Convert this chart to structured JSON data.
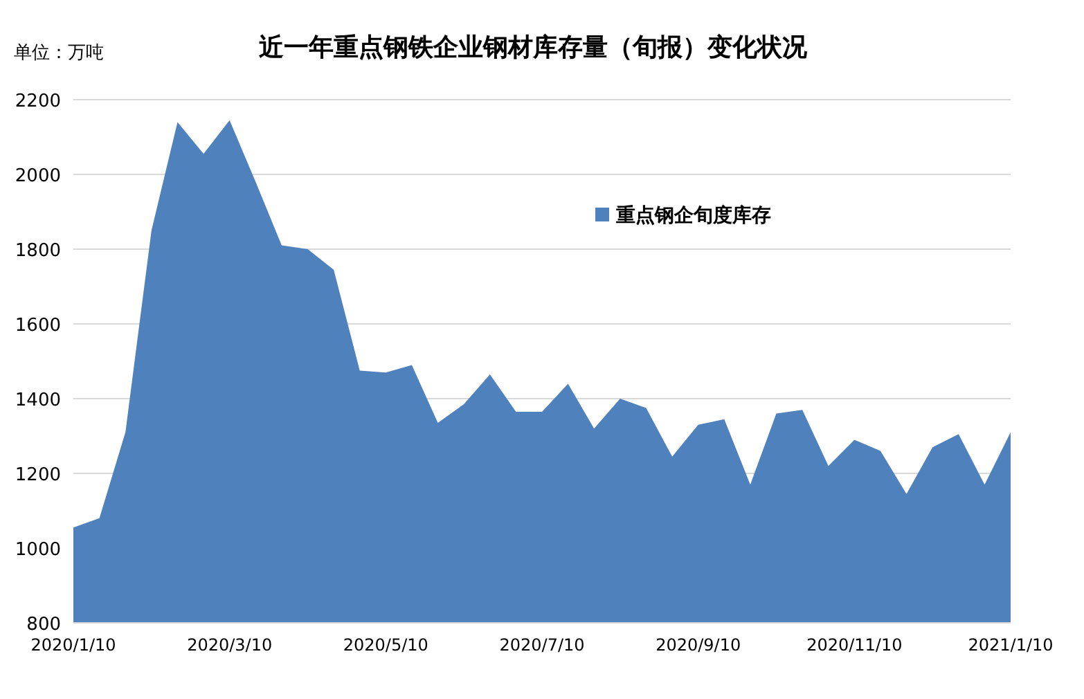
{
  "chart_data": {
    "type": "area",
    "title": "近一年重点钢铁企业钢材库存量（旬报）变化状况",
    "ylabel": "单位：万吨",
    "categories": [
      "2020/1/10",
      null,
      null,
      null,
      null,
      null,
      "2020/3/10",
      null,
      null,
      null,
      null,
      null,
      "2020/5/10",
      null,
      null,
      null,
      null,
      null,
      "2020/7/10",
      null,
      null,
      null,
      null,
      null,
      "2020/9/10",
      null,
      null,
      null,
      null,
      null,
      "2020/11/10",
      null,
      null,
      null,
      null,
      null,
      "2021/1/10"
    ],
    "series": [
      {
        "name": "重点钢企旬度库存",
        "color": "#4f81bd",
        "values": [
          1055,
          1080,
          1310,
          1850,
          2140,
          2055,
          2145,
          1980,
          1810,
          1800,
          1745,
          1475,
          1470,
          1490,
          1335,
          1385,
          1465,
          1365,
          1365,
          1440,
          1320,
          1400,
          1375,
          1245,
          1330,
          1345,
          1170,
          1360,
          1370,
          1220,
          1290,
          1260,
          1145,
          1270,
          1305,
          1170,
          1310
        ]
      }
    ],
    "ylim": [
      800,
      2200
    ],
    "yticks": [
      800,
      1000,
      1200,
      1400,
      1600,
      1800,
      2000,
      2200
    ],
    "grid": "y",
    "legend": "top"
  }
}
